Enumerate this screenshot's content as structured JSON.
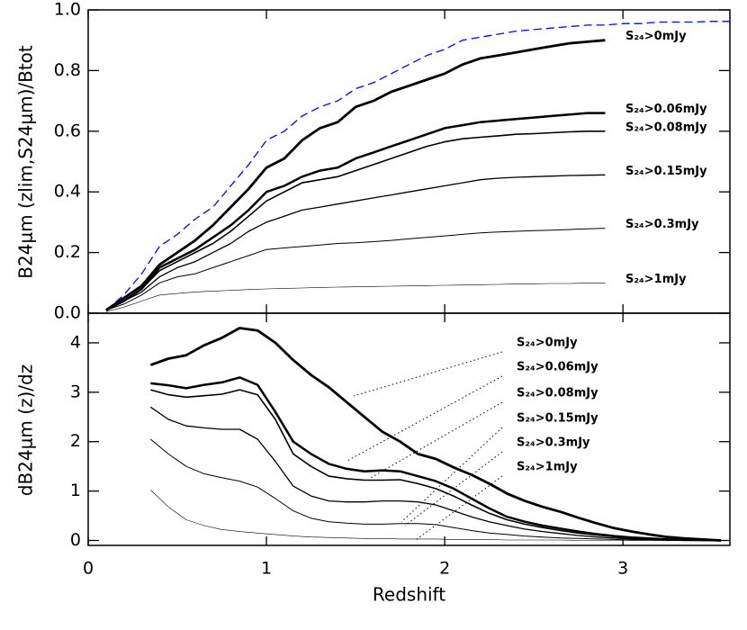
{
  "chart_data": [
    {
      "type": "line",
      "y_label": "B24μm (zlim,S24μm)/Btot",
      "x": [
        0.1,
        0.2,
        0.3,
        0.4,
        0.5,
        0.6,
        0.7,
        0.8,
        0.9,
        1.0,
        1.1,
        1.2,
        1.3,
        1.4,
        1.5,
        1.6,
        1.7,
        1.8,
        1.9,
        2.0,
        2.1,
        2.2,
        2.3,
        2.4,
        2.5,
        2.6,
        2.7,
        2.8,
        2.9,
        3.0,
        3.1,
        3.2,
        3.3,
        3.4,
        3.5,
        3.6
      ],
      "xlim": [
        0,
        3.6
      ],
      "ylim": [
        0,
        1
      ],
      "xticks": [
        0,
        1,
        2,
        3
      ],
      "xtick_labels": false,
      "yticks": [
        {
          "value": 0,
          "label": "0.0"
        },
        0.2,
        0.4,
        0.6,
        0.8,
        {
          "value": 1,
          "label": "1.0"
        }
      ],
      "series": [
        {
          "color": "#0000ff",
          "dash": true,
          "linewidth": 1.3,
          "values": [
            0.01,
            0.06,
            0.13,
            0.22,
            0.26,
            0.31,
            0.35,
            0.42,
            0.49,
            0.57,
            0.6,
            0.65,
            0.68,
            0.7,
            0.74,
            0.76,
            0.79,
            0.82,
            0.85,
            0.87,
            0.9,
            0.91,
            0.92,
            0.93,
            0.935,
            0.94,
            0.945,
            0.95,
            0.95,
            0.955,
            0.955,
            0.96,
            0.96,
            0.96,
            0.962,
            0.962
          ]
        },
        {
          "name": "S₂₄>0mJy",
          "color": "#000000",
          "linewidth": 2.8,
          "values": [
            0.01,
            0.05,
            0.09,
            0.16,
            0.2,
            0.24,
            0.29,
            0.35,
            0.41,
            0.48,
            0.51,
            0.57,
            0.61,
            0.63,
            0.68,
            0.7,
            0.73,
            0.75,
            0.77,
            0.79,
            0.82,
            0.84,
            0.85,
            0.86,
            0.87,
            0.88,
            0.89,
            0.895,
            0.9,
            null,
            null,
            null,
            null,
            null,
            null,
            null
          ]
        },
        {
          "name": "S₂₄>0.06mJy",
          "color": "#000000",
          "linewidth": 2.5,
          "values": [
            0.01,
            0.04,
            0.08,
            0.15,
            0.18,
            0.21,
            0.25,
            0.29,
            0.34,
            0.4,
            0.42,
            0.45,
            0.47,
            0.48,
            0.51,
            0.53,
            0.55,
            0.57,
            0.59,
            0.61,
            0.62,
            0.63,
            0.635,
            0.64,
            0.645,
            0.65,
            0.655,
            0.66,
            0.66,
            null,
            null,
            null,
            null,
            null,
            null,
            null
          ]
        },
        {
          "name": "S₂₄>0.08mJy",
          "color": "#000000",
          "linewidth": 1.6,
          "values": [
            0.01,
            0.04,
            0.08,
            0.14,
            0.17,
            0.2,
            0.23,
            0.27,
            0.32,
            0.37,
            0.4,
            0.43,
            0.44,
            0.45,
            0.47,
            0.49,
            0.51,
            0.53,
            0.55,
            0.565,
            0.575,
            0.58,
            0.585,
            0.59,
            0.592,
            0.595,
            0.598,
            0.6,
            0.6,
            null,
            null,
            null,
            null,
            null,
            null,
            null
          ]
        },
        {
          "name": "S₂₄>0.15mJy",
          "color": "#000000",
          "linewidth": 1.3,
          "values": [
            0.01,
            0.04,
            0.07,
            0.12,
            0.15,
            0.17,
            0.2,
            0.23,
            0.27,
            0.3,
            0.32,
            0.34,
            0.35,
            0.36,
            0.37,
            0.38,
            0.39,
            0.4,
            0.41,
            0.42,
            0.43,
            0.44,
            0.445,
            0.448,
            0.45,
            0.452,
            0.454,
            0.455,
            0.456,
            null,
            null,
            null,
            null,
            null,
            null,
            null
          ]
        },
        {
          "name": "S₂₄>0.3mJy",
          "color": "#000000",
          "linewidth": 1,
          "values": [
            0.01,
            0.03,
            0.06,
            0.1,
            0.12,
            0.13,
            0.15,
            0.17,
            0.19,
            0.21,
            0.215,
            0.22,
            0.225,
            0.23,
            0.232,
            0.236,
            0.24,
            0.245,
            0.25,
            0.255,
            0.26,
            0.265,
            0.268,
            0.27,
            0.272,
            0.274,
            0.276,
            0.278,
            0.28,
            null,
            null,
            null,
            null,
            null,
            null,
            null
          ]
        },
        {
          "name": "S₂₄>1mJy",
          "color": "#000000",
          "linewidth": 0.6,
          "values": [
            0.005,
            0.02,
            0.04,
            0.06,
            0.065,
            0.07,
            0.073,
            0.075,
            0.078,
            0.08,
            0.082,
            0.083,
            0.085,
            0.086,
            0.087,
            0.088,
            0.089,
            0.09,
            0.091,
            0.092,
            0.093,
            0.094,
            0.095,
            0.096,
            0.097,
            0.098,
            0.098,
            0.099,
            0.1,
            null,
            null,
            null,
            null,
            null,
            null,
            null
          ]
        }
      ]
    },
    {
      "type": "line",
      "x_label": "Redshift",
      "y_label": "dB24μm (z)/dz",
      "x": [
        0.35,
        0.45,
        0.55,
        0.65,
        0.75,
        0.85,
        0.95,
        1.05,
        1.15,
        1.25,
        1.35,
        1.45,
        1.55,
        1.65,
        1.75,
        1.85,
        1.95,
        2.05,
        2.15,
        2.25,
        2.35,
        2.45,
        2.55,
        2.65,
        2.75,
        2.85,
        2.95,
        3.05,
        3.15,
        3.25,
        3.35,
        3.45,
        3.55
      ],
      "xlim": [
        0,
        3.6
      ],
      "ylim": [
        -0.1,
        4.6
      ],
      "xticks": [
        0,
        1,
        2,
        3
      ],
      "xtick_labels": true,
      "yticks": [
        0,
        1,
        2,
        3,
        4
      ],
      "series": [
        {
          "name": "S₂₄>0mJy",
          "color": "#000000",
          "linewidth": 2.8,
          "values": [
            3.55,
            3.68,
            3.75,
            3.95,
            4.1,
            4.3,
            4.25,
            4.0,
            3.65,
            3.35,
            3.1,
            2.8,
            2.5,
            2.2,
            2.0,
            1.75,
            1.65,
            1.48,
            1.33,
            1.15,
            0.95,
            0.8,
            0.68,
            0.58,
            0.46,
            0.35,
            0.25,
            0.18,
            0.12,
            0.07,
            0.04,
            0.02,
            0.0
          ]
        },
        {
          "name": "S₂₄>0.06mJy",
          "color": "#000000",
          "linewidth": 2.5,
          "values": [
            3.18,
            3.14,
            3.08,
            3.15,
            3.2,
            3.3,
            3.15,
            2.6,
            2.0,
            1.75,
            1.55,
            1.45,
            1.4,
            1.42,
            1.4,
            1.3,
            1.2,
            1.05,
            0.85,
            0.65,
            0.48,
            0.38,
            0.3,
            0.24,
            0.18,
            0.13,
            0.09,
            0.06,
            0.04,
            0.02,
            0.01,
            0.01,
            0.0
          ]
        },
        {
          "name": "S₂₄>0.08mJy",
          "color": "#000000",
          "linewidth": 1.6,
          "values": [
            3.05,
            2.95,
            2.9,
            2.93,
            2.96,
            3.05,
            2.95,
            2.45,
            1.75,
            1.5,
            1.3,
            1.25,
            1.22,
            1.22,
            1.23,
            1.15,
            1.05,
            0.9,
            0.72,
            0.55,
            0.42,
            0.33,
            0.26,
            0.2,
            0.15,
            0.11,
            0.08,
            0.05,
            0.03,
            0.02,
            0.01,
            0.0,
            0.0
          ]
        },
        {
          "name": "S₂₄>0.15mJy",
          "color": "#000000",
          "linewidth": 1.3,
          "values": [
            2.7,
            2.45,
            2.32,
            2.28,
            2.25,
            2.25,
            2.05,
            1.6,
            1.1,
            0.9,
            0.8,
            0.78,
            0.78,
            0.8,
            0.8,
            0.78,
            0.72,
            0.6,
            0.48,
            0.38,
            0.3,
            0.23,
            0.18,
            0.14,
            0.1,
            0.07,
            0.05,
            0.03,
            0.02,
            0.01,
            0.01,
            0.0,
            0.0
          ]
        },
        {
          "name": "S₂₄>0.3mJy",
          "color": "#000000",
          "linewidth": 1,
          "values": [
            2.05,
            1.75,
            1.5,
            1.35,
            1.27,
            1.2,
            1.08,
            0.85,
            0.6,
            0.45,
            0.38,
            0.35,
            0.33,
            0.33,
            0.34,
            0.34,
            0.32,
            0.26,
            0.2,
            0.15,
            0.12,
            0.09,
            0.07,
            0.05,
            0.04,
            0.03,
            0.02,
            0.01,
            0.01,
            0.0,
            0.0,
            0.0,
            0.0
          ]
        },
        {
          "name": "S₂₄>1mJy",
          "color": "#000000",
          "linewidth": 0.6,
          "values": [
            1.02,
            0.68,
            0.42,
            0.3,
            0.22,
            0.18,
            0.15,
            0.12,
            0.09,
            0.07,
            0.06,
            0.05,
            0.04,
            0.04,
            0.03,
            0.03,
            0.03,
            0.02,
            0.02,
            0.02,
            0.01,
            0.01,
            0.01,
            0.01,
            0.0,
            0.0,
            0.0,
            0.0,
            0.0,
            0.0,
            0.0,
            0.0,
            0.0
          ]
        }
      ]
    }
  ]
}
